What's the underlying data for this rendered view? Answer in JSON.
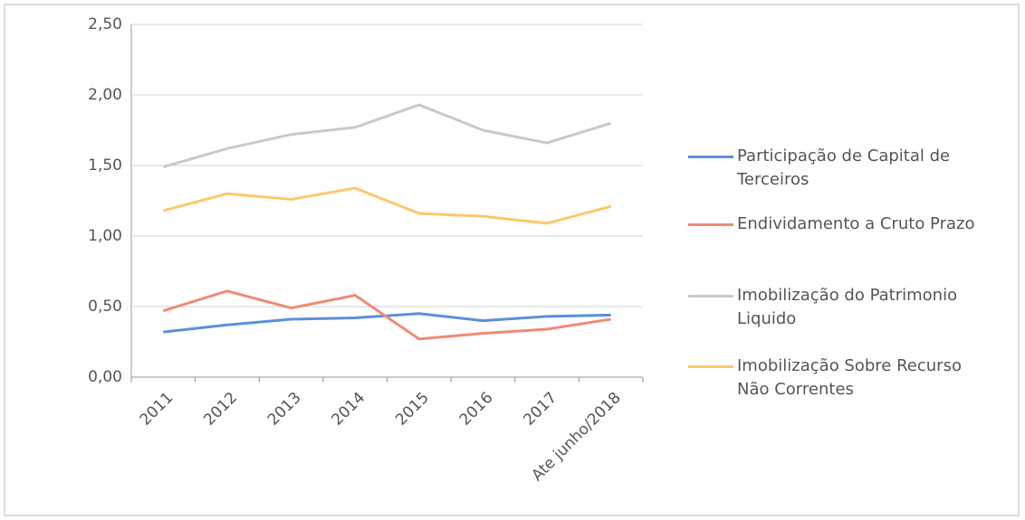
{
  "chart_data": {
    "type": "line",
    "categories": [
      "2011",
      "2012",
      "2013",
      "2014",
      "2015",
      "2016",
      "2017",
      "Ate junho/2018"
    ],
    "series": [
      {
        "name": "Participação de Capital de Terceiros",
        "color": "#5b8fd9",
        "values": [
          0.32,
          0.37,
          0.41,
          0.42,
          0.45,
          0.4,
          0.43,
          0.44
        ]
      },
      {
        "name": "Endividamento a Cruto Prazo",
        "color": "#f08a75",
        "values": [
          0.47,
          0.61,
          0.49,
          0.58,
          0.27,
          0.31,
          0.34,
          0.41
        ]
      },
      {
        "name": "Imobilização do Patrimonio Liquido",
        "color": "#c9c9c9",
        "values": [
          1.49,
          1.62,
          1.72,
          1.77,
          1.93,
          1.75,
          1.66,
          1.8
        ]
      },
      {
        "name": "Imobilização Sobre Recurso Não Correntes",
        "color": "#fdc76a",
        "values": [
          1.18,
          1.3,
          1.26,
          1.34,
          1.16,
          1.14,
          1.09,
          1.21
        ]
      }
    ],
    "ylim": [
      0,
      2.5
    ],
    "yticks": [
      {
        "value": 0,
        "label": "0,00"
      },
      {
        "value": 0.5,
        "label": "0,50"
      },
      {
        "value": 1,
        "label": "1,00"
      },
      {
        "value": 1.5,
        "label": "1,50"
      },
      {
        "value": 2,
        "label": "2,00"
      },
      {
        "value": 2.5,
        "label": "2,50"
      }
    ],
    "grid": true,
    "legend": "right"
  }
}
